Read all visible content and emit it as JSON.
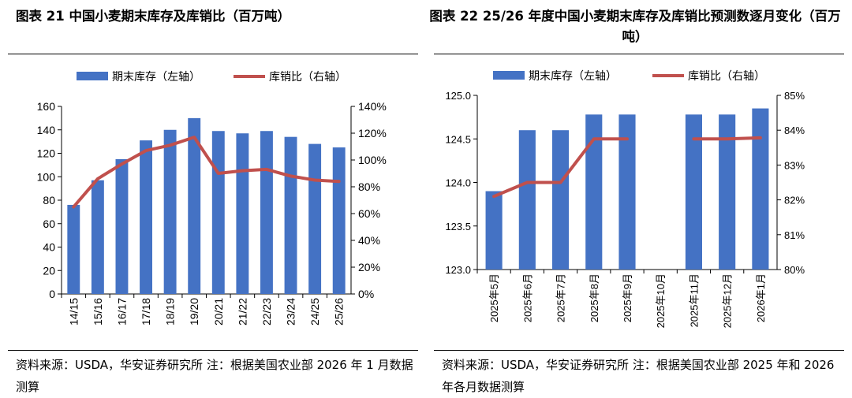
{
  "left": {
    "title": "图表 21 中国小麦期末库存及库销比（百万吨）",
    "source": "资料来源：USDA，华安证券研究所 注：根据美国农业部 2026 年 1 月数据测算"
  },
  "right": {
    "title": "图表 22 25/26 年度中国小麦期末库存及库销比预测数逐月变化（百万吨）",
    "source": "资料来源：USDA，华安证券研究所 注：根据美国农业部 2025 年和 2026 年各月数据测算"
  },
  "colors": {
    "bar": "#4472c4",
    "line": "#c0504d"
  },
  "chart_data": [
    {
      "type": "bar",
      "title": "图表 21 中国小麦期末库存及库销比（百万吨）",
      "categories": [
        "14/15",
        "15/16",
        "16/17",
        "17/18",
        "18/19",
        "19/20",
        "20/21",
        "21/22",
        "22/23",
        "23/24",
        "24/25",
        "25/26"
      ],
      "series": [
        {
          "name": "期末库存（左轴）",
          "axis": "left",
          "type": "bar",
          "values": [
            76,
            97,
            115,
            131,
            140,
            150,
            139,
            137,
            139,
            134,
            128,
            125
          ]
        },
        {
          "name": "库销比（右轴）",
          "axis": "right",
          "type": "line",
          "values": [
            65,
            86,
            97,
            107,
            111,
            117,
            90,
            92,
            93,
            88,
            85,
            84
          ]
        }
      ],
      "ylim_left": [
        0,
        160
      ],
      "yticks_left": [
        0,
        20,
        40,
        60,
        80,
        100,
        120,
        140,
        160
      ],
      "ylim_right": [
        0,
        140
      ],
      "yticks_right": [
        "0%",
        "20%",
        "40%",
        "60%",
        "80%",
        "100%",
        "120%",
        "140%"
      ],
      "legend": [
        "期末库存（左轴）",
        "库销比（右轴）"
      ]
    },
    {
      "type": "bar",
      "title": "图表 22 25/26 年度中国小麦期末库存及库销比预测数逐月变化（百万吨）",
      "categories": [
        "2025年5月",
        "2025年6月",
        "2025年7月",
        "2025年8月",
        "2025年9月",
        "2025年10月",
        "2025年11月",
        "2025年12月",
        "2026年1月"
      ],
      "series": [
        {
          "name": "期末库存（左轴）",
          "axis": "left",
          "type": "bar",
          "values": [
            123.9,
            124.6,
            124.6,
            124.78,
            124.78,
            null,
            124.78,
            124.78,
            124.85
          ]
        },
        {
          "name": "库销比（右轴）",
          "axis": "right",
          "type": "line",
          "values": [
            82.1,
            82.5,
            82.5,
            83.75,
            83.75,
            null,
            83.75,
            83.75,
            83.78
          ]
        }
      ],
      "ylim_left": [
        123.0,
        125.0
      ],
      "yticks_left": [
        "123.0",
        "123.5",
        "124.0",
        "124.5",
        "125.0"
      ],
      "ylim_right": [
        80,
        85
      ],
      "yticks_right": [
        "80%",
        "81%",
        "82%",
        "83%",
        "84%",
        "85%"
      ],
      "legend": [
        "期末库存（左轴）",
        "库销比（右轴）"
      ]
    }
  ]
}
